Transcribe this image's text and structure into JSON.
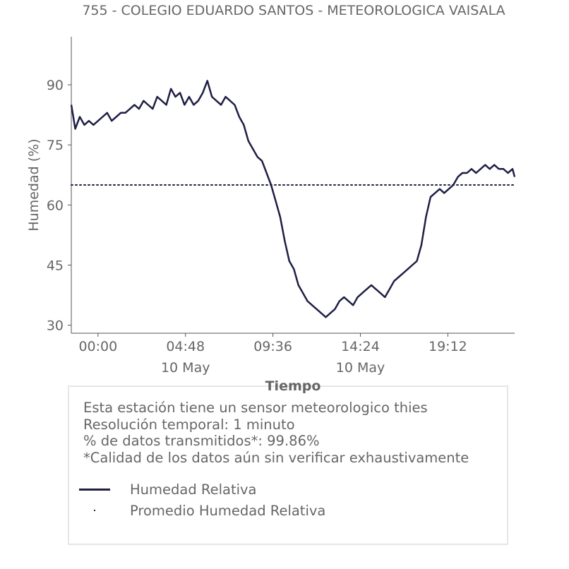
{
  "title": "755 - COLEGIO EDUARDO SANTOS - METEOROLOGICA VAISALA",
  "info": [
    "Esta estación tiene un sensor meteorologico thies",
    "Resolución temporal: 1 minuto",
    "% de datos transmitidos*: 99.86%",
    "*Calidad de los datos aún sin verificar exhaustivamente"
  ],
  "legend": [
    {
      "label": "Humedad Relativa",
      "marker": "line"
    },
    {
      "label": "Promedio Humedad Relativa",
      "marker": "dot"
    }
  ],
  "colors": {
    "series": "#1f1f45",
    "text": "#666666",
    "axis": "#555555",
    "box_border": "#e6e6e6"
  },
  "chart_data": {
    "type": "line",
    "title": "755 - COLEGIO EDUARDO SANTOS - METEOROLOGICA VAISALA",
    "xlabel": "Tiempo",
    "ylabel": "Humedad (%)",
    "xlim": [
      "2024-05-09T22:32",
      "2024-05-10T22:52"
    ],
    "ylim": [
      28,
      102
    ],
    "grid": false,
    "legend_position": "below plot, in info box",
    "x_ticks": [
      {
        "t": "2024-05-10T00:00",
        "label": "00:00",
        "sublabel": ""
      },
      {
        "t": "2024-05-10T04:48",
        "label": "04:48",
        "sublabel": "10 May"
      },
      {
        "t": "2024-05-10T09:36",
        "label": "09:36",
        "sublabel": ""
      },
      {
        "t": "2024-05-10T14:24",
        "label": "14:24",
        "sublabel": "10 May"
      },
      {
        "t": "2024-05-10T19:12",
        "label": "19:12",
        "sublabel": ""
      }
    ],
    "y_ticks": [
      30,
      45,
      60,
      75,
      90
    ],
    "series": [
      {
        "name": "Humedad Relativa",
        "style": "solid",
        "x": [
          "2024-05-09T22:32",
          "2024-05-09T22:45",
          "2024-05-09T23:00",
          "2024-05-09T23:15",
          "2024-05-09T23:30",
          "2024-05-09T23:45",
          "2024-05-10T00:00",
          "2024-05-10T00:15",
          "2024-05-10T00:30",
          "2024-05-10T00:45",
          "2024-05-10T01:00",
          "2024-05-10T01:15",
          "2024-05-10T01:30",
          "2024-05-10T01:45",
          "2024-05-10T02:00",
          "2024-05-10T02:15",
          "2024-05-10T02:30",
          "2024-05-10T02:45",
          "2024-05-10T03:00",
          "2024-05-10T03:15",
          "2024-05-10T03:30",
          "2024-05-10T03:45",
          "2024-05-10T04:00",
          "2024-05-10T04:15",
          "2024-05-10T04:30",
          "2024-05-10T04:45",
          "2024-05-10T05:00",
          "2024-05-10T05:15",
          "2024-05-10T05:30",
          "2024-05-10T05:45",
          "2024-05-10T06:00",
          "2024-05-10T06:15",
          "2024-05-10T06:30",
          "2024-05-10T06:45",
          "2024-05-10T07:00",
          "2024-05-10T07:15",
          "2024-05-10T07:30",
          "2024-05-10T07:45",
          "2024-05-10T08:00",
          "2024-05-10T08:15",
          "2024-05-10T08:30",
          "2024-05-10T08:45",
          "2024-05-10T09:00",
          "2024-05-10T09:15",
          "2024-05-10T09:30",
          "2024-05-10T09:45",
          "2024-05-10T10:00",
          "2024-05-10T10:15",
          "2024-05-10T10:30",
          "2024-05-10T10:45",
          "2024-05-10T11:00",
          "2024-05-10T11:15",
          "2024-05-10T11:30",
          "2024-05-10T11:45",
          "2024-05-10T12:00",
          "2024-05-10T12:15",
          "2024-05-10T12:30",
          "2024-05-10T12:45",
          "2024-05-10T13:00",
          "2024-05-10T13:15",
          "2024-05-10T13:30",
          "2024-05-10T13:45",
          "2024-05-10T14:00",
          "2024-05-10T14:15",
          "2024-05-10T14:30",
          "2024-05-10T14:45",
          "2024-05-10T15:00",
          "2024-05-10T15:15",
          "2024-05-10T15:30",
          "2024-05-10T15:45",
          "2024-05-10T16:00",
          "2024-05-10T16:15",
          "2024-05-10T16:30",
          "2024-05-10T16:45",
          "2024-05-10T17:00",
          "2024-05-10T17:15",
          "2024-05-10T17:30",
          "2024-05-10T17:45",
          "2024-05-10T18:00",
          "2024-05-10T18:15",
          "2024-05-10T18:30",
          "2024-05-10T18:45",
          "2024-05-10T19:00",
          "2024-05-10T19:15",
          "2024-05-10T19:30",
          "2024-05-10T19:45",
          "2024-05-10T20:00",
          "2024-05-10T20:15",
          "2024-05-10T20:30",
          "2024-05-10T20:45",
          "2024-05-10T21:00",
          "2024-05-10T21:15",
          "2024-05-10T21:30",
          "2024-05-10T21:45",
          "2024-05-10T22:00",
          "2024-05-10T22:15",
          "2024-05-10T22:30",
          "2024-05-10T22:45",
          "2024-05-10T22:52"
        ],
        "values": [
          85,
          79,
          82,
          80,
          81,
          80,
          81,
          82,
          83,
          81,
          82,
          83,
          83,
          84,
          85,
          84,
          86,
          85,
          84,
          87,
          86,
          85,
          89,
          87,
          88,
          85,
          87,
          85,
          86,
          88,
          91,
          87,
          86,
          85,
          87,
          86,
          85,
          82,
          80,
          76,
          74,
          72,
          71,
          68,
          65,
          61,
          57,
          51,
          46,
          44,
          40,
          38,
          36,
          35,
          34,
          33,
          32,
          33,
          34,
          36,
          37,
          36,
          35,
          37,
          38,
          39,
          40,
          39,
          38,
          37,
          39,
          41,
          42,
          43,
          44,
          45,
          46,
          50,
          57,
          62,
          63,
          64,
          63,
          64,
          65,
          67,
          68,
          68,
          69,
          68,
          69,
          70,
          69,
          70,
          69,
          69,
          68,
          69,
          67
        ]
      },
      {
        "name": "Promedio Humedad Relativa",
        "style": "dotted",
        "x": [
          "2024-05-09T22:32",
          "2024-05-10T22:52"
        ],
        "values": [
          65,
          65
        ]
      }
    ]
  }
}
